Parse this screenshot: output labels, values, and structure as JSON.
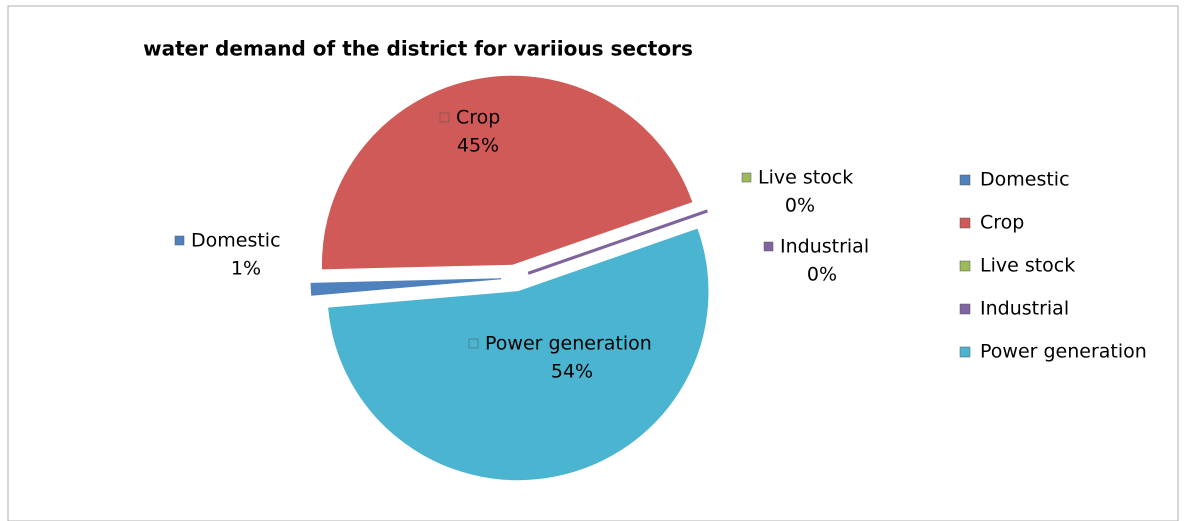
{
  "chart_data": {
    "type": "pie",
    "title": "water demand of the district for variious sectors",
    "categories": [
      "Domestic",
      "Crop",
      "Live stock",
      "Industrial",
      "Power generation"
    ],
    "values": [
      1,
      45,
      0,
      0,
      54
    ],
    "value_labels": [
      "1%",
      "45%",
      "0%",
      "0%",
      "54%"
    ],
    "colors": [
      "#4f81bd",
      "#d05a57",
      "#9bbb59",
      "#8064a2",
      "#4bb4d0"
    ],
    "legend": "right"
  }
}
